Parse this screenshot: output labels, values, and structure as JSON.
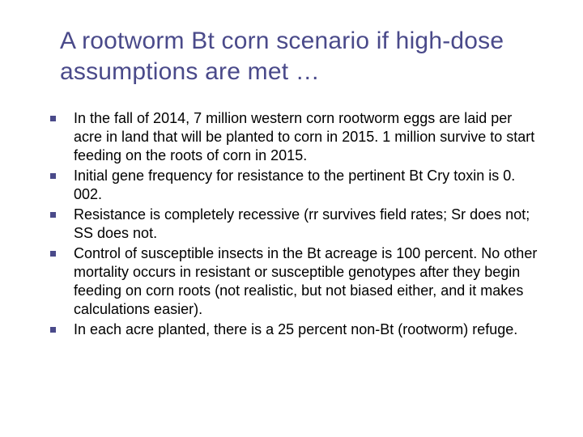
{
  "slide": {
    "title": "A rootworm Bt corn scenario if high-dose assumptions are met …",
    "title_color": "#4a4a8a",
    "title_fontsize": 30,
    "bullet_color": "#4a4a8a",
    "bullet_size": 7,
    "body_fontsize": 18,
    "body_color": "#000000",
    "background_color": "#ffffff",
    "bullets": [
      "In the fall of 2014, 7 million western corn rootworm eggs are laid per acre in land that will be planted to corn in 2015. 1 million survive to start feeding on the roots of corn in 2015.",
      "Initial gene frequency for resistance to the pertinent Bt Cry toxin is 0. 002.",
      "Resistance is completely recessive (rr survives field rates; Sr does not; SS does not.",
      "Control of susceptible insects in the Bt acreage is 100 percent. No other mortality occurs in resistant or susceptible genotypes after they begin feeding on corn roots (not realistic, but not biased either, and it makes calculations easier).",
      "In each acre planted, there is a 25 percent non-Bt (rootworm) refuge."
    ]
  }
}
